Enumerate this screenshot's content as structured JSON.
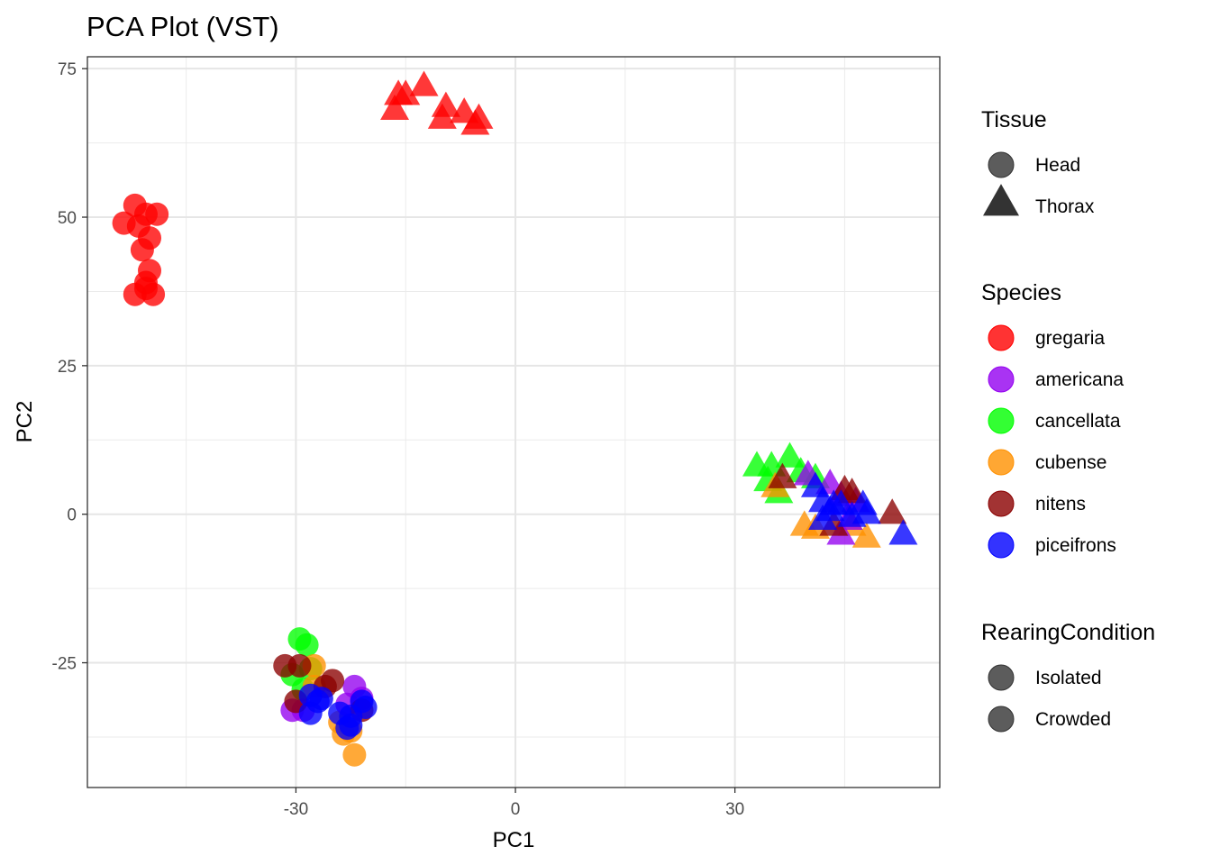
{
  "chart_data": {
    "type": "scatter",
    "title": "PCA Plot (VST)",
    "xlabel": "PC1",
    "ylabel": "PC2",
    "xlim": [
      -58.5,
      58
    ],
    "ylim": [
      -46,
      77
    ],
    "x_ticks": [
      -30,
      0,
      30
    ],
    "x_tick_labels": [
      "-30",
      "0",
      "30"
    ],
    "y_ticks": [
      -25,
      0,
      25,
      50,
      75
    ],
    "y_tick_labels": [
      "-25",
      "0",
      "25",
      "50",
      "75"
    ],
    "grid": true,
    "legend_position": "right",
    "legends": [
      {
        "title": "Tissue",
        "entries": [
          {
            "label": "Head",
            "shape": "circle",
            "color": "#333333"
          },
          {
            "label": "Thorax",
            "shape": "triangle",
            "color": "#333333"
          }
        ]
      },
      {
        "title": "Species",
        "entries": [
          {
            "label": "gregaria",
            "shape": "circle",
            "color": "#ff0000"
          },
          {
            "label": "americana",
            "shape": "circle",
            "color": "#9400f0"
          },
          {
            "label": "cancellata",
            "shape": "circle",
            "color": "#00ff00"
          },
          {
            "label": "cubense",
            "shape": "circle",
            "color": "#ff9100"
          },
          {
            "label": "nitens",
            "shape": "circle",
            "color": "#8b0000"
          },
          {
            "label": "piceifrons",
            "shape": "circle",
            "color": "#0000ff"
          }
        ]
      },
      {
        "title": "RearingCondition",
        "entries": [
          {
            "label": "Isolated",
            "shape": "circle",
            "color": "#333333"
          },
          {
            "label": "Crowded",
            "shape": "circle",
            "color": "#333333"
          }
        ]
      }
    ],
    "series": [
      {
        "name": "gregaria",
        "color": "#ff0000",
        "points": [
          {
            "x": -52,
            "y": 52,
            "shape": "circle"
          },
          {
            "x": -53.5,
            "y": 49,
            "shape": "circle"
          },
          {
            "x": -50.5,
            "y": 50.5,
            "shape": "circle"
          },
          {
            "x": -49,
            "y": 50.5,
            "shape": "circle"
          },
          {
            "x": -51.5,
            "y": 48.5,
            "shape": "circle"
          },
          {
            "x": -50,
            "y": 46.5,
            "shape": "circle"
          },
          {
            "x": -51,
            "y": 44.5,
            "shape": "circle"
          },
          {
            "x": -50,
            "y": 41,
            "shape": "circle"
          },
          {
            "x": -50.5,
            "y": 39,
            "shape": "circle"
          },
          {
            "x": -52,
            "y": 37,
            "shape": "circle"
          },
          {
            "x": -50.5,
            "y": 38,
            "shape": "circle"
          },
          {
            "x": -49.5,
            "y": 37,
            "shape": "circle"
          },
          {
            "x": -16,
            "y": 70.5,
            "shape": "triangle"
          },
          {
            "x": -15,
            "y": 70.5,
            "shape": "triangle"
          },
          {
            "x": -16.5,
            "y": 68,
            "shape": "triangle"
          },
          {
            "x": -12.5,
            "y": 72,
            "shape": "triangle"
          },
          {
            "x": -9.5,
            "y": 68.5,
            "shape": "triangle"
          },
          {
            "x": -10,
            "y": 66.5,
            "shape": "triangle"
          },
          {
            "x": -7,
            "y": 67.5,
            "shape": "triangle"
          },
          {
            "x": -5,
            "y": 66.5,
            "shape": "triangle"
          },
          {
            "x": -5.5,
            "y": 65.5,
            "shape": "triangle"
          }
        ]
      },
      {
        "name": "cancellata",
        "color": "#00ff00",
        "points": [
          {
            "x": -29.5,
            "y": -21,
            "shape": "circle"
          },
          {
            "x": -28.5,
            "y": -22,
            "shape": "circle"
          },
          {
            "x": -30.5,
            "y": -27,
            "shape": "circle"
          },
          {
            "x": -28,
            "y": -26,
            "shape": "circle"
          },
          {
            "x": -29,
            "y": -29.5,
            "shape": "circle"
          },
          {
            "x": 33,
            "y": 8,
            "shape": "triangle"
          },
          {
            "x": 35,
            "y": 8,
            "shape": "triangle"
          },
          {
            "x": 37.5,
            "y": 9.5,
            "shape": "triangle"
          },
          {
            "x": 34.5,
            "y": 5.5,
            "shape": "triangle"
          },
          {
            "x": 36,
            "y": 3.5,
            "shape": "triangle"
          },
          {
            "x": 39,
            "y": 7,
            "shape": "triangle"
          },
          {
            "x": 41,
            "y": 6,
            "shape": "triangle"
          }
        ]
      },
      {
        "name": "cubense",
        "color": "#ff9100",
        "points": [
          {
            "x": -27.5,
            "y": -25.5,
            "shape": "circle"
          },
          {
            "x": -27.5,
            "y": -29,
            "shape": "circle"
          },
          {
            "x": -24,
            "y": -35,
            "shape": "circle"
          },
          {
            "x": -23.5,
            "y": -37,
            "shape": "circle"
          },
          {
            "x": -22.5,
            "y": -36.5,
            "shape": "circle"
          },
          {
            "x": -22,
            "y": -40.5,
            "shape": "circle"
          },
          {
            "x": 35.5,
            "y": 4.5,
            "shape": "triangle"
          },
          {
            "x": 39.5,
            "y": -2,
            "shape": "triangle"
          },
          {
            "x": 41,
            "y": -2.5,
            "shape": "triangle"
          },
          {
            "x": 46,
            "y": -2,
            "shape": "triangle"
          },
          {
            "x": 48,
            "y": -4,
            "shape": "triangle"
          }
        ]
      },
      {
        "name": "americana",
        "color": "#9400f0",
        "points": [
          {
            "x": -30.5,
            "y": -33,
            "shape": "circle"
          },
          {
            "x": -29,
            "y": -33,
            "shape": "circle"
          },
          {
            "x": -22,
            "y": -29,
            "shape": "circle"
          },
          {
            "x": -21,
            "y": -31,
            "shape": "circle"
          },
          {
            "x": -23,
            "y": -32,
            "shape": "circle"
          },
          {
            "x": 40,
            "y": 6.5,
            "shape": "triangle"
          },
          {
            "x": 43,
            "y": 5,
            "shape": "triangle"
          },
          {
            "x": 44.5,
            "y": 3,
            "shape": "triangle"
          },
          {
            "x": 45.5,
            "y": -1,
            "shape": "triangle"
          },
          {
            "x": 44.5,
            "y": -3.5,
            "shape": "triangle"
          },
          {
            "x": 46.5,
            "y": 2,
            "shape": "triangle"
          }
        ]
      },
      {
        "name": "nitens",
        "color": "#8b0000",
        "points": [
          {
            "x": -31.5,
            "y": -25.5,
            "shape": "circle"
          },
          {
            "x": -29.5,
            "y": -25.5,
            "shape": "circle"
          },
          {
            "x": -30,
            "y": -31.5,
            "shape": "circle"
          },
          {
            "x": -25,
            "y": -28,
            "shape": "circle"
          },
          {
            "x": -26,
            "y": -29,
            "shape": "circle"
          },
          {
            "x": -21,
            "y": -33,
            "shape": "circle"
          },
          {
            "x": 36.5,
            "y": 6,
            "shape": "triangle"
          },
          {
            "x": 45,
            "y": 4,
            "shape": "triangle"
          },
          {
            "x": 46,
            "y": 3.5,
            "shape": "triangle"
          },
          {
            "x": 43.5,
            "y": -2,
            "shape": "triangle"
          },
          {
            "x": 51.5,
            "y": 0,
            "shape": "triangle"
          }
        ]
      },
      {
        "name": "piceifrons",
        "color": "#0000ff",
        "points": [
          {
            "x": -28,
            "y": -30.5,
            "shape": "circle"
          },
          {
            "x": -27,
            "y": -31.5,
            "shape": "circle"
          },
          {
            "x": -26.5,
            "y": -31,
            "shape": "circle"
          },
          {
            "x": -28,
            "y": -33.5,
            "shape": "circle"
          },
          {
            "x": -24,
            "y": -33.5,
            "shape": "circle"
          },
          {
            "x": -22.5,
            "y": -34,
            "shape": "circle"
          },
          {
            "x": -21,
            "y": -31.5,
            "shape": "circle"
          },
          {
            "x": -20.5,
            "y": -32.5,
            "shape": "circle"
          },
          {
            "x": -22.5,
            "y": -35.5,
            "shape": "circle"
          },
          {
            "x": -23,
            "y": -36,
            "shape": "circle"
          },
          {
            "x": 41,
            "y": 4.5,
            "shape": "triangle"
          },
          {
            "x": 42,
            "y": 2,
            "shape": "triangle"
          },
          {
            "x": 43.5,
            "y": 1.5,
            "shape": "triangle"
          },
          {
            "x": 44.5,
            "y": 1.5,
            "shape": "triangle"
          },
          {
            "x": 43,
            "y": 0.5,
            "shape": "triangle"
          },
          {
            "x": 47.5,
            "y": 1.5,
            "shape": "triangle"
          },
          {
            "x": 42,
            "y": -1,
            "shape": "triangle"
          },
          {
            "x": 46,
            "y": -0.5,
            "shape": "triangle"
          },
          {
            "x": 48,
            "y": 0,
            "shape": "triangle"
          },
          {
            "x": 53,
            "y": -3.5,
            "shape": "triangle"
          }
        ]
      }
    ]
  }
}
